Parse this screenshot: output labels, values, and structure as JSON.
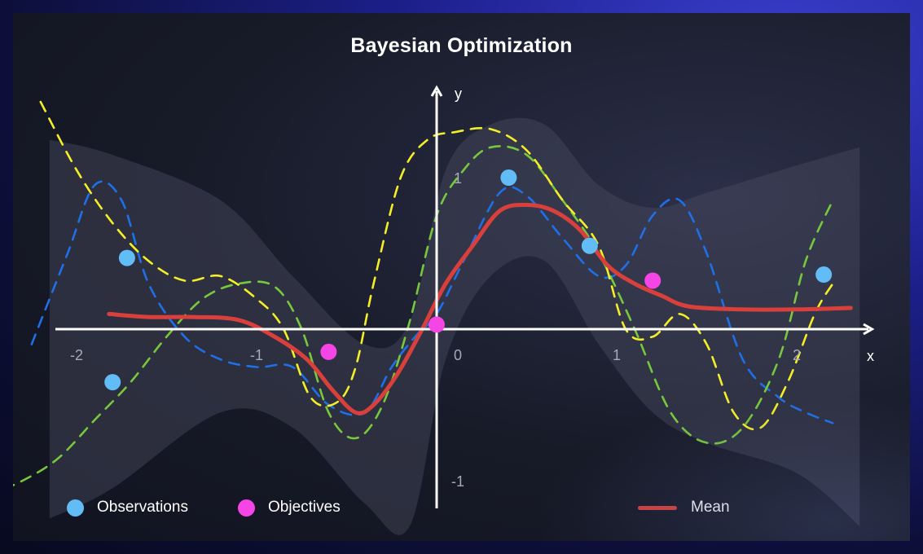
{
  "chart_data": {
    "type": "line",
    "title": "Bayesian Optimization",
    "xlabel": "x",
    "ylabel": "y",
    "xlim": [
      -2.4,
      2.3
    ],
    "ylim": [
      -1.55,
      1.4
    ],
    "x_ticks": [
      {
        "value": -2,
        "label": "-2"
      },
      {
        "value": -1,
        "label": "-1"
      },
      {
        "value": 0,
        "label": "0"
      },
      {
        "value": 1,
        "label": "1"
      },
      {
        "value": 2,
        "label": "2"
      }
    ],
    "y_ticks": [
      {
        "value": 1,
        "label": "1"
      },
      {
        "value": -1,
        "label": "-1"
      }
    ],
    "legend": [
      {
        "key": "observations",
        "label": "Observations",
        "color": "#62bdf7"
      },
      {
        "key": "objectives",
        "label": "Objectives",
        "color": "#f545e6"
      },
      {
        "key": "mean",
        "label": "Mean",
        "color": "#d9403c"
      }
    ],
    "colors": {
      "band": "#4a4c60",
      "axis": "#ffffff",
      "blue_sample": "#1f6fe6",
      "green_sample": "#78c83c",
      "yellow_sample": "#f3ee28",
      "mean": "#d9403c",
      "observations": "#62bdf7",
      "objectives": "#f545e6"
    },
    "confidence_band": {
      "x": [
        -2.15,
        -1.8,
        -1.2,
        -0.8,
        -0.4,
        -0.15,
        0.05,
        0.3,
        0.6,
        0.9,
        1.2,
        1.5,
        2.0,
        2.35
      ],
      "upper": [
        1.25,
        1.15,
        0.85,
        0.35,
        -0.1,
        0.05,
        1.05,
        1.35,
        1.35,
        0.95,
        0.8,
        0.9,
        1.08,
        1.2
      ],
      "lower": [
        -1.25,
        -1.05,
        -0.55,
        -0.65,
        -1.15,
        -1.3,
        -0.2,
        0.35,
        0.45,
        -0.1,
        -0.55,
        -0.75,
        -0.95,
        -1.3
      ]
    },
    "series": [
      {
        "key": "blue",
        "style": "dashed",
        "x": [
          -2.25,
          -2.05,
          -1.9,
          -1.75,
          -1.6,
          -1.4,
          -1.2,
          -1.0,
          -0.8,
          -0.6,
          -0.4,
          -0.25,
          -0.12,
          0.0,
          0.15,
          0.35,
          0.5,
          0.7,
          0.9,
          1.05,
          1.2,
          1.35,
          1.5,
          1.7,
          1.9,
          2.05,
          2.2
        ],
        "y": [
          -0.1,
          0.5,
          0.95,
          0.85,
          0.3,
          -0.05,
          -0.2,
          -0.25,
          -0.25,
          -0.5,
          -0.55,
          -0.25,
          -0.05,
          0.1,
          0.45,
          0.9,
          0.88,
          0.6,
          0.35,
          0.42,
          0.75,
          0.85,
          0.5,
          -0.2,
          -0.45,
          -0.55,
          -0.62
        ]
      },
      {
        "key": "green",
        "style": "dashed",
        "x": [
          -2.5,
          -2.3,
          -2.1,
          -1.9,
          -1.7,
          -1.5,
          -1.3,
          -1.1,
          -0.9,
          -0.75,
          -0.6,
          -0.45,
          -0.3,
          -0.15,
          0.0,
          0.15,
          0.3,
          0.5,
          0.7,
          0.9,
          1.1,
          1.3,
          1.5,
          1.7,
          1.9,
          2.05,
          2.2
        ],
        "y": [
          -1.1,
          -1.0,
          -0.85,
          -0.6,
          -0.35,
          -0.05,
          0.2,
          0.3,
          0.28,
          0.0,
          -0.55,
          -0.72,
          -0.5,
          0.05,
          0.75,
          1.05,
          1.2,
          1.15,
          0.85,
          0.5,
          0.0,
          -0.55,
          -0.75,
          -0.65,
          -0.2,
          0.45,
          0.85
        ]
      },
      {
        "key": "yellow",
        "style": "dashed",
        "x": [
          -2.2,
          -2.0,
          -1.8,
          -1.6,
          -1.4,
          -1.2,
          -1.0,
          -0.85,
          -0.7,
          -0.55,
          -0.45,
          -0.35,
          -0.2,
          -0.05,
          0.1,
          0.3,
          0.5,
          0.7,
          0.9,
          1.05,
          1.2,
          1.35,
          1.5,
          1.65,
          1.8,
          1.95,
          2.1,
          2.2
        ],
        "y": [
          1.5,
          1.05,
          0.7,
          0.45,
          0.32,
          0.35,
          0.2,
          0.0,
          -0.45,
          -0.48,
          -0.25,
          0.3,
          1.0,
          1.25,
          1.3,
          1.32,
          1.18,
          0.85,
          0.55,
          0.0,
          -0.05,
          0.1,
          -0.1,
          -0.55,
          -0.65,
          -0.35,
          0.1,
          0.3
        ]
      },
      {
        "key": "mean",
        "style": "solid",
        "x": [
          -1.82,
          -1.6,
          -1.35,
          -1.1,
          -0.9,
          -0.72,
          -0.58,
          -0.45,
          -0.35,
          -0.22,
          -0.08,
          0.05,
          0.2,
          0.35,
          0.5,
          0.65,
          0.8,
          0.95,
          1.1,
          1.25,
          1.4,
          1.7,
          2.0,
          2.3
        ],
        "y": [
          0.1,
          0.08,
          0.08,
          0.06,
          -0.05,
          -0.2,
          -0.4,
          -0.55,
          -0.5,
          -0.3,
          0.0,
          0.3,
          0.55,
          0.78,
          0.82,
          0.78,
          0.65,
          0.42,
          0.3,
          0.22,
          0.15,
          0.13,
          0.13,
          0.14
        ]
      }
    ],
    "observations": {
      "x": [
        -1.72,
        -1.8,
        0.4,
        0.85,
        2.15
      ],
      "y": [
        0.47,
        -0.35,
        1.0,
        0.55,
        0.36
      ]
    },
    "objectives": {
      "x": [
        -0.6,
        0.0,
        1.2
      ],
      "y": [
        -0.15,
        0.03,
        0.32
      ]
    }
  }
}
